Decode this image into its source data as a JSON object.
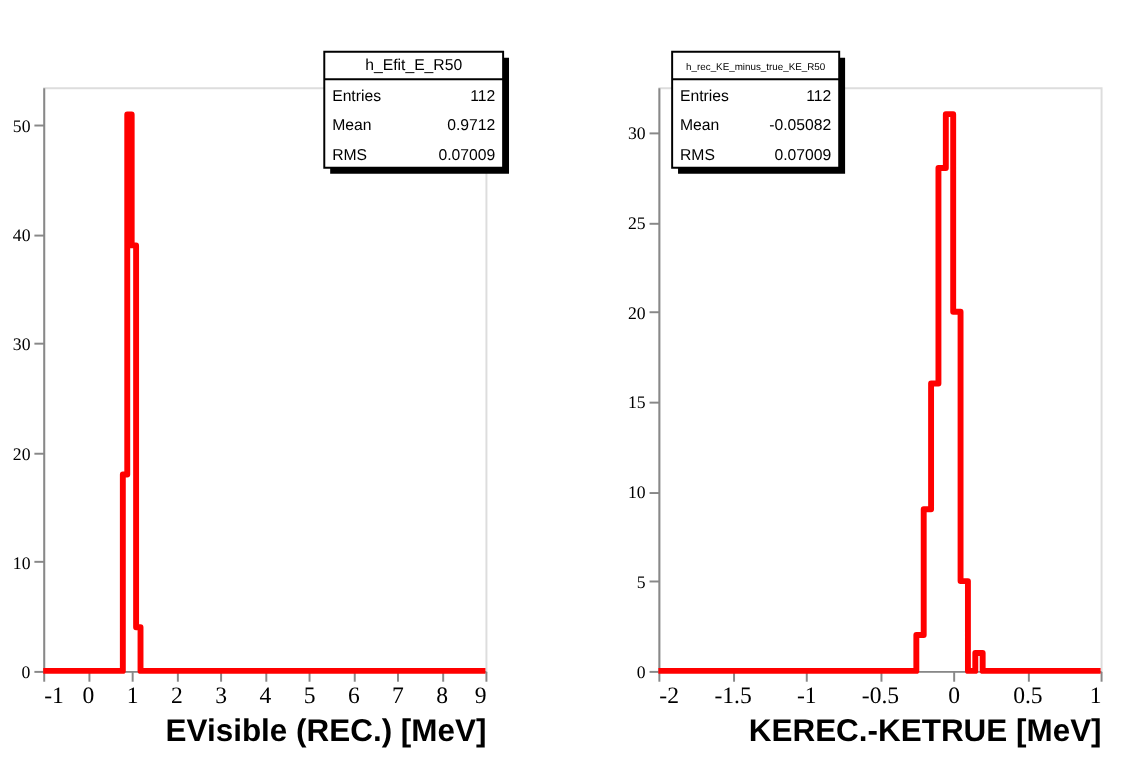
{
  "chart_data": [
    {
      "type": "histogram",
      "title": "h_Efit_E_R50",
      "xlabel": "EVisible (REC.) [MeV]",
      "bins": [
        -1,
        0.8,
        0.9,
        1.0,
        1.1,
        1.2,
        9
      ],
      "values": [
        0,
        18,
        51,
        39,
        4,
        0
      ],
      "color": "#ff0000",
      "xlim": [
        -1,
        9
      ],
      "xticks": [
        -1,
        0,
        1,
        2,
        3,
        4,
        5,
        6,
        7,
        8,
        9
      ],
      "ylim": [
        0,
        53.5
      ],
      "yticks": [
        0,
        10,
        20,
        30,
        40,
        50
      ],
      "annotations": [
        "Entries",
        "112",
        "Mean",
        "0.9712",
        "RMS",
        "0.07009"
      ],
      "grid": false
    },
    {
      "type": "histogram",
      "title": "h_rec_KE_minus_true_KE_R50",
      "xlabel": "KEREC.-KETRUE [MeV]",
      "bins": [
        -2,
        -0.25,
        -0.2,
        -0.15,
        -0.1,
        -0.05,
        0,
        0.05,
        0.1,
        0.15,
        0.2,
        1
      ],
      "values": [
        0,
        2,
        9,
        16,
        28,
        31,
        20,
        5,
        0,
        1,
        0
      ],
      "color": "#ff0000",
      "xlim": [
        -2,
        1
      ],
      "xticks": [
        -2,
        -1.5,
        -1,
        -0.5,
        0,
        0.5,
        1
      ],
      "ylim": [
        0,
        32.5
      ],
      "yticks": [
        0,
        5,
        10,
        15,
        20,
        25,
        30
      ],
      "annotations": [
        "Entries",
        "112",
        "Mean",
        "-0.05082",
        "RMS",
        "0.07009"
      ],
      "grid": false
    }
  ]
}
